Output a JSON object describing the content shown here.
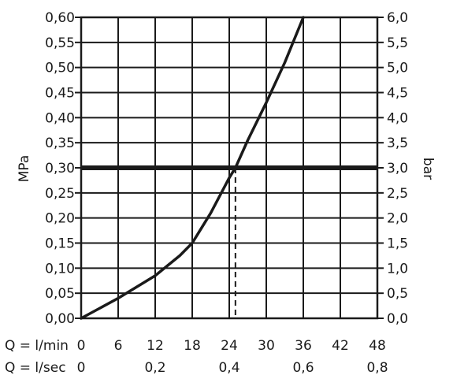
{
  "chart_data": {
    "type": "line",
    "left_axis": {
      "label": "MPa",
      "ticks": [
        "0,00",
        "0,05",
        "0,10",
        "0,15",
        "0,20",
        "0,25",
        "0,30",
        "0,35",
        "0,40",
        "0,45",
        "0,50",
        "0,55",
        "0,60"
      ],
      "range": [
        0,
        0.6
      ]
    },
    "right_axis": {
      "label": "bar",
      "ticks": [
        "0,0",
        "0,5",
        "1,0",
        "1,5",
        "2,0",
        "2,5",
        "3,0",
        "3,5",
        "4,0",
        "4,5",
        "5,0",
        "5,5",
        "6,0"
      ],
      "range": [
        0,
        6
      ]
    },
    "x_axis_lmin": {
      "label": "Q = l/min",
      "ticks": [
        "0",
        "6",
        "12",
        "18",
        "24",
        "30",
        "36",
        "42",
        "48"
      ],
      "range": [
        0,
        48
      ]
    },
    "x_axis_lsec": {
      "label": "Q = l/sec",
      "ticks": [
        "0",
        "0,2",
        "0,4",
        "0,6",
        "0,8"
      ],
      "range": [
        0,
        0.8
      ]
    },
    "series": [
      {
        "x": [
          0,
          6,
          12,
          16,
          18,
          21,
          24,
          25,
          27,
          30,
          33,
          36
        ],
        "y": [
          0,
          0.04,
          0.085,
          0.125,
          0.15,
          0.21,
          0.28,
          0.3,
          0.355,
          0.43,
          0.51,
          0.6
        ]
      }
    ],
    "reference_line": {
      "y": 0.3
    },
    "marker": {
      "x": 25,
      "y": 0.3,
      "style": "dashed-vertical"
    },
    "grid": true
  }
}
